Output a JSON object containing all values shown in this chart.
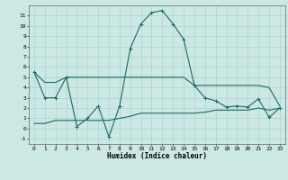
{
  "xlabel": "Humidex (Indice chaleur)",
  "x_values": [
    0,
    1,
    2,
    3,
    4,
    5,
    6,
    7,
    8,
    9,
    10,
    11,
    12,
    13,
    14,
    15,
    16,
    17,
    18,
    19,
    20,
    21,
    22,
    23
  ],
  "line_main": [
    5.5,
    3.0,
    3.0,
    5.0,
    0.2,
    1.0,
    2.2,
    -0.8,
    2.2,
    7.8,
    10.2,
    11.3,
    11.5,
    10.2,
    8.7,
    4.2,
    3.0,
    2.7,
    2.1,
    2.2,
    2.1,
    2.9,
    1.1,
    2.0
  ],
  "line_upper": [
    5.5,
    4.5,
    4.5,
    5.0,
    5.0,
    5.0,
    5.0,
    5.0,
    5.0,
    5.0,
    5.0,
    5.0,
    5.0,
    5.0,
    5.0,
    4.2,
    4.2,
    4.2,
    4.2,
    4.2,
    4.2,
    4.2,
    4.0,
    2.2
  ],
  "line_lower": [
    0.5,
    0.5,
    0.8,
    0.8,
    0.8,
    0.8,
    0.8,
    0.8,
    1.0,
    1.2,
    1.5,
    1.5,
    1.5,
    1.5,
    1.5,
    1.5,
    1.6,
    1.8,
    1.8,
    1.8,
    1.8,
    2.0,
    1.8,
    2.0
  ],
  "bg_color": "#cce8e4",
  "grid_color": "#aad4cf",
  "line_color": "#1a6b5e",
  "ylim": [
    -1.5,
    12.0
  ],
  "xlim": [
    -0.5,
    23.5
  ],
  "yticks": [
    -1,
    0,
    1,
    2,
    3,
    4,
    5,
    6,
    7,
    8,
    9,
    10,
    11
  ],
  "xticks": [
    0,
    1,
    2,
    3,
    4,
    5,
    6,
    7,
    8,
    9,
    10,
    11,
    12,
    13,
    14,
    15,
    16,
    17,
    18,
    19,
    20,
    21,
    22,
    23
  ],
  "figsize": [
    3.2,
    2.0
  ],
  "dpi": 100
}
